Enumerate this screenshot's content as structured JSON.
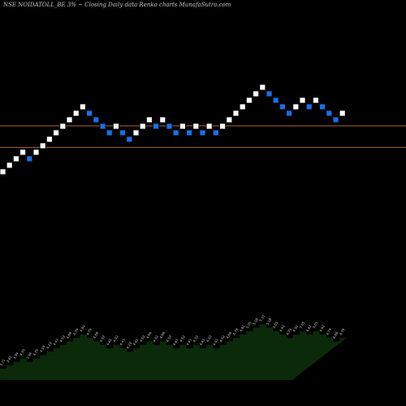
{
  "header": {
    "title": "NSE NOIDATOLL_BE 3% ~  Closing Daily data  Renko  charts MunafaSutra.com"
  },
  "colors": {
    "background": "#000000",
    "up_brick": "#ffffff",
    "down_brick": "#1a6fe8",
    "brick_border": "#000000",
    "reference_line": "#b5651d",
    "volume_fill": "#0a2a0a"
  },
  "chart_data": {
    "type": "renko",
    "brick_size_percent": 3,
    "reference_lines": [
      7.0,
      6.0
    ],
    "bricks": [
      {
        "dir": "up",
        "value": 4.9
      },
      {
        "dir": "up",
        "value": 5.2
      },
      {
        "dir": "up",
        "value": 5.5
      },
      {
        "dir": "up",
        "value": 5.8
      },
      {
        "dir": "down",
        "value": 5.5
      },
      {
        "dir": "up",
        "value": 5.8
      },
      {
        "dir": "up",
        "value": 6.1
      },
      {
        "dir": "up",
        "value": 6.4
      },
      {
        "dir": "up",
        "value": 6.7
      },
      {
        "dir": "up",
        "value": 7.0
      },
      {
        "dir": "up",
        "value": 7.3
      },
      {
        "dir": "up",
        "value": 7.6
      },
      {
        "dir": "up",
        "value": 7.9
      },
      {
        "dir": "down",
        "value": 7.6
      },
      {
        "dir": "down",
        "value": 7.3
      },
      {
        "dir": "down",
        "value": 7.0
      },
      {
        "dir": "down",
        "value": 6.7
      },
      {
        "dir": "up",
        "value": 7.0
      },
      {
        "dir": "down",
        "value": 6.7
      },
      {
        "dir": "down",
        "value": 6.4
      },
      {
        "dir": "up",
        "value": 6.7
      },
      {
        "dir": "up",
        "value": 7.0
      },
      {
        "dir": "up",
        "value": 7.3
      },
      {
        "dir": "down",
        "value": 7.0
      },
      {
        "dir": "up",
        "value": 7.3
      },
      {
        "dir": "down",
        "value": 7.0
      },
      {
        "dir": "down",
        "value": 6.7
      },
      {
        "dir": "up",
        "value": 7.0
      },
      {
        "dir": "down",
        "value": 6.7
      },
      {
        "dir": "up",
        "value": 7.0
      },
      {
        "dir": "down",
        "value": 6.7
      },
      {
        "dir": "up",
        "value": 7.0
      },
      {
        "dir": "down",
        "value": 6.7
      },
      {
        "dir": "up",
        "value": 7.0
      },
      {
        "dir": "up",
        "value": 7.3
      },
      {
        "dir": "up",
        "value": 7.6
      },
      {
        "dir": "up",
        "value": 7.9
      },
      {
        "dir": "up",
        "value": 8.2
      },
      {
        "dir": "up",
        "value": 8.5
      },
      {
        "dir": "up",
        "value": 8.8
      },
      {
        "dir": "down",
        "value": 8.5
      },
      {
        "dir": "down",
        "value": 8.2
      },
      {
        "dir": "down",
        "value": 7.9
      },
      {
        "dir": "down",
        "value": 7.6
      },
      {
        "dir": "up",
        "value": 7.9
      },
      {
        "dir": "up",
        "value": 8.2
      },
      {
        "dir": "down",
        "value": 7.9
      },
      {
        "dir": "up",
        "value": 8.2
      },
      {
        "dir": "down",
        "value": 7.9
      },
      {
        "dir": "down",
        "value": 7.6
      },
      {
        "dir": "down",
        "value": 7.3
      },
      {
        "dir": "up",
        "value": 7.6
      }
    ],
    "volume_labels": [
      "3.71",
      "3.82",
      "3.94",
      "4.05",
      "3.94",
      "4.05",
      "4.18",
      "4.29",
      "4.41",
      "4.52",
      "4.66",
      "4.79",
      "4.92",
      "4.79",
      "4.66",
      "4.52",
      "4.41",
      "4.52",
      "4.41",
      "4.29",
      "4.41",
      "4.52",
      "4.66",
      "4.52",
      "4.66",
      "4.52",
      "4.41",
      "4.52",
      "4.41",
      "4.52",
      "4.41",
      "4.52",
      "4.41",
      "4.52",
      "4.66",
      "4.79",
      "4.92",
      "5.05",
      "5.18",
      "5.31",
      "5.18",
      "5.05",
      "4.92",
      "4.79",
      "4.92",
      "5.05",
      "4.92",
      "5.05",
      "4.92",
      "4.79",
      "4.66",
      "4.79"
    ]
  }
}
